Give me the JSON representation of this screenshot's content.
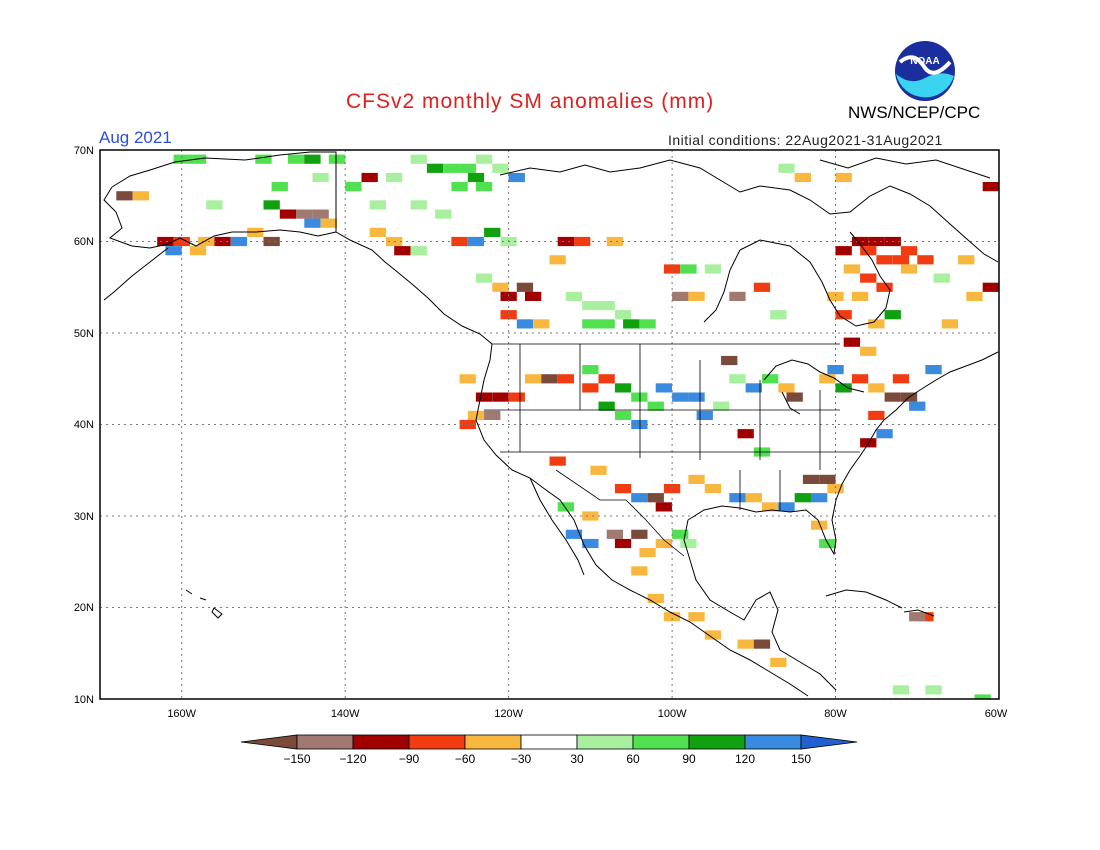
{
  "title": "CFSv2 monthly SM anomalies (mm)",
  "month": "Aug 2021",
  "initial_conditions": "Initial conditions: 22Aug2021-31Aug2021",
  "agency": "NWS/NCEP/CPC",
  "logo_text": "NOAA",
  "map": {
    "lon_range": [
      -170,
      -60
    ],
    "lat_range": [
      10,
      70
    ],
    "lat_labels": [
      "70N",
      "60N",
      "50N",
      "40N",
      "30N",
      "20N",
      "10N"
    ],
    "lon_labels": [
      "160W",
      "140W",
      "120W",
      "100W",
      "80W",
      "60W"
    ]
  },
  "legend": {
    "labels": [
      "-150",
      "-120",
      "-90",
      "-60",
      "-30",
      "30",
      "60",
      "90",
      "120",
      "150"
    ],
    "colors": [
      "#7a4a3a",
      "#a07a70",
      "#a00000",
      "#f03c10",
      "#f8b840",
      "#ffffff",
      "#a8f0a0",
      "#50e050",
      "#10a010",
      "#3a8ae0",
      "#2060d0"
    ]
  },
  "anomaly_cells": [
    {
      "lon": -160,
      "lat": 69,
      "c": "#50e050"
    },
    {
      "lon": -158,
      "lat": 69,
      "c": "#50e050"
    },
    {
      "lon": -150,
      "lat": 69,
      "c": "#50e050"
    },
    {
      "lon": -146,
      "lat": 69,
      "c": "#50e050"
    },
    {
      "lon": -144,
      "lat": 69,
      "c": "#10a010"
    },
    {
      "lon": -141,
      "lat": 69,
      "c": "#50e050"
    },
    {
      "lon": -131,
      "lat": 69,
      "c": "#a8f0a0"
    },
    {
      "lon": -129,
      "lat": 68,
      "c": "#10a010"
    },
    {
      "lon": -127,
      "lat": 68,
      "c": "#50e050"
    },
    {
      "lon": -125,
      "lat": 68,
      "c": "#50e050"
    },
    {
      "lon": -123,
      "lat": 69,
      "c": "#a8f0a0"
    },
    {
      "lon": -121,
      "lat": 68,
      "c": "#a8f0a0"
    },
    {
      "lon": -124,
      "lat": 67,
      "c": "#10a010"
    },
    {
      "lon": -126,
      "lat": 66,
      "c": "#50e050"
    },
    {
      "lon": -123,
      "lat": 66,
      "c": "#50e050"
    },
    {
      "lon": -119,
      "lat": 67,
      "c": "#3a8ae0"
    },
    {
      "lon": -137,
      "lat": 67,
      "c": "#a00000"
    },
    {
      "lon": -134,
      "lat": 67,
      "c": "#a8f0a0"
    },
    {
      "lon": -143,
      "lat": 67,
      "c": "#a8f0a0"
    },
    {
      "lon": -148,
      "lat": 66,
      "c": "#50e050"
    },
    {
      "lon": -139,
      "lat": 66,
      "c": "#50e050"
    },
    {
      "lon": -136,
      "lat": 64,
      "c": "#a8f0a0"
    },
    {
      "lon": -131,
      "lat": 64,
      "c": "#a8f0a0"
    },
    {
      "lon": -128,
      "lat": 63,
      "c": "#a8f0a0"
    },
    {
      "lon": -149,
      "lat": 64,
      "c": "#10a010"
    },
    {
      "lon": -145,
      "lat": 63,
      "c": "#a07a70"
    },
    {
      "lon": -143,
      "lat": 63,
      "c": "#a07a70"
    },
    {
      "lon": -147,
      "lat": 63,
      "c": "#a00000"
    },
    {
      "lon": -144,
      "lat": 62,
      "c": "#3a8ae0"
    },
    {
      "lon": -142,
      "lat": 62,
      "c": "#f8b840"
    },
    {
      "lon": -167,
      "lat": 65,
      "c": "#7a4a3a"
    },
    {
      "lon": -165,
      "lat": 65,
      "c": "#f8b840"
    },
    {
      "lon": -156,
      "lat": 64,
      "c": "#a8f0a0"
    },
    {
      "lon": -162,
      "lat": 60,
      "c": "#a00000"
    },
    {
      "lon": -160,
      "lat": 60,
      "c": "#f03c10"
    },
    {
      "lon": -157,
      "lat": 60,
      "c": "#f8b840"
    },
    {
      "lon": -155,
      "lat": 60,
      "c": "#a00000"
    },
    {
      "lon": -153,
      "lat": 60,
      "c": "#3a8ae0"
    },
    {
      "lon": -151,
      "lat": 61,
      "c": "#f8b840"
    },
    {
      "lon": -149,
      "lat": 60,
      "c": "#7a4a3a"
    },
    {
      "lon": -161,
      "lat": 59,
      "c": "#3a8ae0"
    },
    {
      "lon": -158,
      "lat": 59,
      "c": "#f8b840"
    },
    {
      "lon": -136,
      "lat": 61,
      "c": "#f8b840"
    },
    {
      "lon": -134,
      "lat": 60,
      "c": "#f8b840"
    },
    {
      "lon": -133,
      "lat": 59,
      "c": "#a00000"
    },
    {
      "lon": -131,
      "lat": 59,
      "c": "#a8f0a0"
    },
    {
      "lon": -126,
      "lat": 60,
      "c": "#f03c10"
    },
    {
      "lon": -124,
      "lat": 60,
      "c": "#3a8ae0"
    },
    {
      "lon": -122,
      "lat": 61,
      "c": "#10a010"
    },
    {
      "lon": -120,
      "lat": 60,
      "c": "#a8f0a0"
    },
    {
      "lon": -113,
      "lat": 60,
      "c": "#a00000"
    },
    {
      "lon": -111,
      "lat": 60,
      "c": "#f03c10"
    },
    {
      "lon": -107,
      "lat": 60,
      "c": "#f8b840"
    },
    {
      "lon": -114,
      "lat": 58,
      "c": "#f8b840"
    },
    {
      "lon": -123,
      "lat": 56,
      "c": "#a8f0a0"
    },
    {
      "lon": -121,
      "lat": 55,
      "c": "#f8b840"
    },
    {
      "lon": -118,
      "lat": 55,
      "c": "#7a4a3a"
    },
    {
      "lon": -117,
      "lat": 54,
      "c": "#a00000"
    },
    {
      "lon": -120,
      "lat": 54,
      "c": "#a00000"
    },
    {
      "lon": -120,
      "lat": 52,
      "c": "#f03c10"
    },
    {
      "lon": -118,
      "lat": 51,
      "c": "#3a8ae0"
    },
    {
      "lon": -116,
      "lat": 51,
      "c": "#f8b840"
    },
    {
      "lon": -112,
      "lat": 54,
      "c": "#a8f0a0"
    },
    {
      "lon": -110,
      "lat": 53,
      "c": "#a8f0a0"
    },
    {
      "lon": -108,
      "lat": 53,
      "c": "#a8f0a0"
    },
    {
      "lon": -106,
      "lat": 52,
      "c": "#a8f0a0"
    },
    {
      "lon": -110,
      "lat": 51,
      "c": "#50e050"
    },
    {
      "lon": -108,
      "lat": 51,
      "c": "#50e050"
    },
    {
      "lon": -105,
      "lat": 51,
      "c": "#10a010"
    },
    {
      "lon": -103,
      "lat": 51,
      "c": "#50e050"
    },
    {
      "lon": -99,
      "lat": 54,
      "c": "#a07a70"
    },
    {
      "lon": -97,
      "lat": 54,
      "c": "#f8b840"
    },
    {
      "lon": -100,
      "lat": 57,
      "c": "#f03c10"
    },
    {
      "lon": -98,
      "lat": 57,
      "c": "#50e050"
    },
    {
      "lon": -95,
      "lat": 57,
      "c": "#a8f0a0"
    },
    {
      "lon": -92,
      "lat": 54,
      "c": "#a07a70"
    },
    {
      "lon": -89,
      "lat": 55,
      "c": "#f03c10"
    },
    {
      "lon": -87,
      "lat": 52,
      "c": "#a8f0a0"
    },
    {
      "lon": -77,
      "lat": 60,
      "c": "#a00000"
    },
    {
      "lon": -75,
      "lat": 60,
      "c": "#a00000"
    },
    {
      "lon": -73,
      "lat": 60,
      "c": "#a00000"
    },
    {
      "lon": -76,
      "lat": 59,
      "c": "#f03c10"
    },
    {
      "lon": -74,
      "lat": 58,
      "c": "#f03c10"
    },
    {
      "lon": -72,
      "lat": 58,
      "c": "#f03c10"
    },
    {
      "lon": -71,
      "lat": 59,
      "c": "#f03c10"
    },
    {
      "lon": -69,
      "lat": 58,
      "c": "#f03c10"
    },
    {
      "lon": -79,
      "lat": 59,
      "c": "#a00000"
    },
    {
      "lon": -78,
      "lat": 57,
      "c": "#f8b840"
    },
    {
      "lon": -76,
      "lat": 56,
      "c": "#f03c10"
    },
    {
      "lon": -74,
      "lat": 55,
      "c": "#f03c10"
    },
    {
      "lon": -80,
      "lat": 54,
      "c": "#f8b840"
    },
    {
      "lon": -77,
      "lat": 54,
      "c": "#f8b840"
    },
    {
      "lon": -71,
      "lat": 57,
      "c": "#f8b840"
    },
    {
      "lon": -67,
      "lat": 56,
      "c": "#a8f0a0"
    },
    {
      "lon": -64,
      "lat": 58,
      "c": "#f8b840"
    },
    {
      "lon": -61,
      "lat": 55,
      "c": "#a00000"
    },
    {
      "lon": -63,
      "lat": 54,
      "c": "#f8b840"
    },
    {
      "lon": -66,
      "lat": 51,
      "c": "#f8b840"
    },
    {
      "lon": -73,
      "lat": 52,
      "c": "#10a010"
    },
    {
      "lon": -75,
      "lat": 51,
      "c": "#f8b840"
    },
    {
      "lon": -79,
      "lat": 52,
      "c": "#f03c10"
    },
    {
      "lon": -61,
      "lat": 66,
      "c": "#a00000"
    },
    {
      "lon": -79,
      "lat": 67,
      "c": "#f8b840"
    },
    {
      "lon": -84,
      "lat": 67,
      "c": "#f8b840"
    },
    {
      "lon": -86,
      "lat": 68,
      "c": "#a8f0a0"
    },
    {
      "lon": -125,
      "lat": 45,
      "c": "#f8b840"
    },
    {
      "lon": -123,
      "lat": 43,
      "c": "#a00000"
    },
    {
      "lon": -121,
      "lat": 43,
      "c": "#a00000"
    },
    {
      "lon": -119,
      "lat": 43,
      "c": "#f03c10"
    },
    {
      "lon": -125,
      "lat": 40,
      "c": "#f03c10"
    },
    {
      "lon": -124,
      "lat": 41,
      "c": "#f8b840"
    },
    {
      "lon": -122,
      "lat": 41,
      "c": "#a07a70"
    },
    {
      "lon": -117,
      "lat": 45,
      "c": "#f8b840"
    },
    {
      "lon": -115,
      "lat": 45,
      "c": "#7a4a3a"
    },
    {
      "lon": -113,
      "lat": 45,
      "c": "#f03c10"
    },
    {
      "lon": -110,
      "lat": 46,
      "c": "#50e050"
    },
    {
      "lon": -108,
      "lat": 45,
      "c": "#f03c10"
    },
    {
      "lon": -110,
      "lat": 44,
      "c": "#f03c10"
    },
    {
      "lon": -106,
      "lat": 44,
      "c": "#10a010"
    },
    {
      "lon": -104,
      "lat": 43,
      "c": "#50e050"
    },
    {
      "lon": -101,
      "lat": 44,
      "c": "#3a8ae0"
    },
    {
      "lon": -99,
      "lat": 43,
      "c": "#3a8ae0"
    },
    {
      "lon": -97,
      "lat": 43,
      "c": "#3a8ae0"
    },
    {
      "lon": -102,
      "lat": 42,
      "c": "#50e050"
    },
    {
      "lon": -106,
      "lat": 41,
      "c": "#50e050"
    },
    {
      "lon": -108,
      "lat": 42,
      "c": "#10a010"
    },
    {
      "lon": -104,
      "lat": 40,
      "c": "#3a8ae0"
    },
    {
      "lon": -96,
      "lat": 41,
      "c": "#3a8ae0"
    },
    {
      "lon": -94,
      "lat": 42,
      "c": "#a8f0a0"
    },
    {
      "lon": -91,
      "lat": 39,
      "c": "#a00000"
    },
    {
      "lon": -89,
      "lat": 37,
      "c": "#50e050"
    },
    {
      "lon": -92,
      "lat": 45,
      "c": "#a8f0a0"
    },
    {
      "lon": -93,
      "lat": 47,
      "c": "#7a4a3a"
    },
    {
      "lon": -90,
      "lat": 44,
      "c": "#3a8ae0"
    },
    {
      "lon": -88,
      "lat": 45,
      "c": "#50e050"
    },
    {
      "lon": -86,
      "lat": 44,
      "c": "#f8b840"
    },
    {
      "lon": -85,
      "lat": 43,
      "c": "#7a4a3a"
    },
    {
      "lon": -79,
      "lat": 44,
      "c": "#10a010"
    },
    {
      "lon": -77,
      "lat": 45,
      "c": "#f03c10"
    },
    {
      "lon": -75,
      "lat": 44,
      "c": "#f8b840"
    },
    {
      "lon": -73,
      "lat": 43,
      "c": "#7a4a3a"
    },
    {
      "lon": -71,
      "lat": 43,
      "c": "#7a4a3a"
    },
    {
      "lon": -70,
      "lat": 42,
      "c": "#3a8ae0"
    },
    {
      "lon": -75,
      "lat": 41,
      "c": "#f03c10"
    },
    {
      "lon": -76,
      "lat": 38,
      "c": "#a00000"
    },
    {
      "lon": -74,
      "lat": 39,
      "c": "#3a8ae0"
    },
    {
      "lon": -78,
      "lat": 49,
      "c": "#a00000"
    },
    {
      "lon": -76,
      "lat": 48,
      "c": "#f8b840"
    },
    {
      "lon": -80,
      "lat": 46,
      "c": "#3a8ae0"
    },
    {
      "lon": -81,
      "lat": 45,
      "c": "#f8b840"
    },
    {
      "lon": -68,
      "lat": 46,
      "c": "#3a8ae0"
    },
    {
      "lon": -72,
      "lat": 45,
      "c": "#f03c10"
    },
    {
      "lon": -114,
      "lat": 36,
      "c": "#f03c10"
    },
    {
      "lon": -109,
      "lat": 35,
      "c": "#f8b840"
    },
    {
      "lon": -106,
      "lat": 33,
      "c": "#f03c10"
    },
    {
      "lon": -104,
      "lat": 32,
      "c": "#3a8ae0"
    },
    {
      "lon": -102,
      "lat": 32,
      "c": "#7a4a3a"
    },
    {
      "lon": -101,
      "lat": 31,
      "c": "#a00000"
    },
    {
      "lon": -100,
      "lat": 33,
      "c": "#f03c10"
    },
    {
      "lon": -97,
      "lat": 34,
      "c": "#f8b840"
    },
    {
      "lon": -95,
      "lat": 33,
      "c": "#f8b840"
    },
    {
      "lon": -92,
      "lat": 32,
      "c": "#3a8ae0"
    },
    {
      "lon": -90,
      "lat": 32,
      "c": "#f8b840"
    },
    {
      "lon": -88,
      "lat": 31,
      "c": "#f8b840"
    },
    {
      "lon": -86,
      "lat": 31,
      "c": "#3a8ae0"
    },
    {
      "lon": -84,
      "lat": 32,
      "c": "#10a010"
    },
    {
      "lon": -82,
      "lat": 32,
      "c": "#3a8ae0"
    },
    {
      "lon": -80,
      "lat": 33,
      "c": "#f8b840"
    },
    {
      "lon": -83,
      "lat": 34,
      "c": "#7a4a3a"
    },
    {
      "lon": -81,
      "lat": 34,
      "c": "#7a4a3a"
    },
    {
      "lon": -82,
      "lat": 29,
      "c": "#f8b840"
    },
    {
      "lon": -81,
      "lat": 27,
      "c": "#50e050"
    },
    {
      "lon": -113,
      "lat": 31,
      "c": "#50e050"
    },
    {
      "lon": -110,
      "lat": 30,
      "c": "#f8b840"
    },
    {
      "lon": -112,
      "lat": 28,
      "c": "#3a8ae0"
    },
    {
      "lon": -110,
      "lat": 27,
      "c": "#3a8ae0"
    },
    {
      "lon": -107,
      "lat": 28,
      "c": "#a07a70"
    },
    {
      "lon": -106,
      "lat": 27,
      "c": "#a00000"
    },
    {
      "lon": -104,
      "lat": 28,
      "c": "#7a4a3a"
    },
    {
      "lon": -103,
      "lat": 26,
      "c": "#f8b840"
    },
    {
      "lon": -101,
      "lat": 27,
      "c": "#f8b840"
    },
    {
      "lon": -99,
      "lat": 28,
      "c": "#50e050"
    },
    {
      "lon": -98,
      "lat": 27,
      "c": "#a8f0a0"
    },
    {
      "lon": -104,
      "lat": 24,
      "c": "#f8b840"
    },
    {
      "lon": -102,
      "lat": 21,
      "c": "#f8b840"
    },
    {
      "lon": -100,
      "lat": 19,
      "c": "#f8b840"
    },
    {
      "lon": -97,
      "lat": 19,
      "c": "#f8b840"
    },
    {
      "lon": -95,
      "lat": 17,
      "c": "#f8b840"
    },
    {
      "lon": -91,
      "lat": 16,
      "c": "#f8b840"
    },
    {
      "lon": -89,
      "lat": 16,
      "c": "#7a4a3a"
    },
    {
      "lon": -87,
      "lat": 14,
      "c": "#f8b840"
    },
    {
      "lon": -69,
      "lat": 19,
      "c": "#f03c10"
    },
    {
      "lon": -70,
      "lat": 19,
      "c": "#a07a70"
    },
    {
      "lon": -68,
      "lat": 11,
      "c": "#a8f0a0"
    },
    {
      "lon": -72,
      "lat": 11,
      "c": "#a8f0a0"
    },
    {
      "lon": -62,
      "lat": 10,
      "c": "#50e050"
    }
  ]
}
